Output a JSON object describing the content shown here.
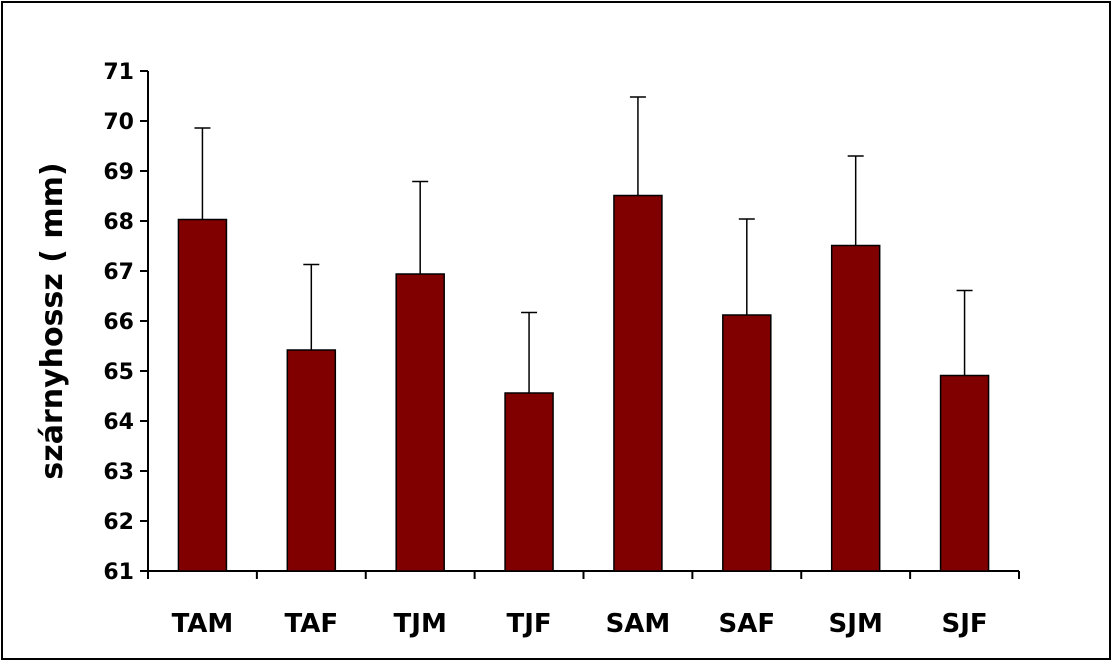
{
  "chart_data": {
    "type": "bar",
    "categories": [
      "TAM",
      "TAF",
      "TJM",
      "TJF",
      "SAM",
      "SAF",
      "SJM",
      "SJF"
    ],
    "values": [
      68.03,
      65.42,
      66.94,
      64.56,
      68.51,
      66.12,
      67.51,
      64.91
    ],
    "error_upper": [
      69.86,
      67.13,
      68.79,
      66.17,
      70.48,
      68.04,
      69.3,
      66.61
    ],
    "ylabel": "szárnyhossz ( mm)",
    "xlabel": "",
    "ylim": [
      61,
      71
    ],
    "yticks": [
      "61",
      "62",
      "63",
      "64",
      "65",
      "66",
      "67",
      "68",
      "69",
      "70",
      "71"
    ],
    "colors": {
      "bar": "#800000",
      "outline": "#000000"
    },
    "grid": false,
    "legend": "none"
  }
}
